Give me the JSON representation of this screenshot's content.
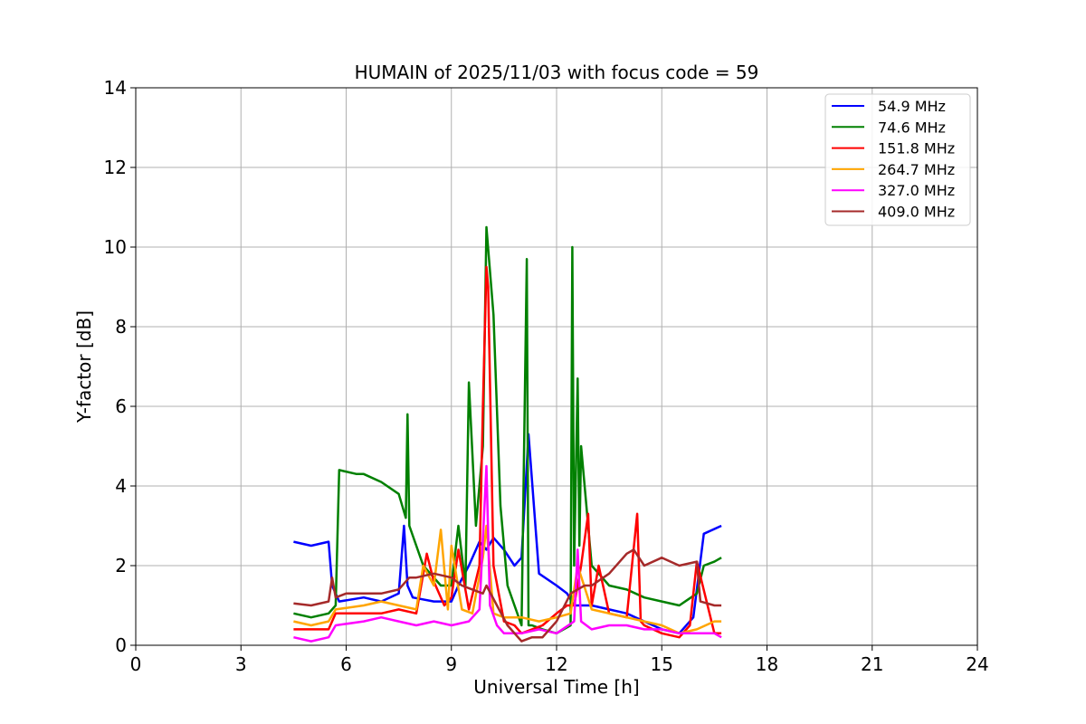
{
  "chart_data": {
    "type": "line",
    "title": "HUMAIN of 2025/11/03 with focus code = 59",
    "xlabel": "Universal Time [h]",
    "ylabel": "Y-factor [dB]",
    "xlim": [
      0,
      24
    ],
    "ylim": [
      0,
      14
    ],
    "xticks": [
      "0",
      "3",
      "6",
      "9",
      "12",
      "15",
      "18",
      "21",
      "24"
    ],
    "yticks": [
      "0",
      "2",
      "4",
      "6",
      "8",
      "10",
      "12",
      "14"
    ],
    "grid": true,
    "legend_position": "top-right",
    "series": [
      {
        "name": " 54.9 MHz",
        "color": "#0000ff",
        "x": [
          4.5,
          5.0,
          5.5,
          5.6,
          5.8,
          6.5,
          7.0,
          7.5,
          7.65,
          7.75,
          7.9,
          8.5,
          9.0,
          9.2,
          9.5,
          9.8,
          10.0,
          10.2,
          10.5,
          10.8,
          11.0,
          11.2,
          11.5,
          12.0,
          12.3,
          12.5,
          13.0,
          13.5,
          14.0,
          14.5,
          15.0,
          15.5,
          15.9,
          16.2,
          16.7
        ],
        "y": [
          2.6,
          2.5,
          2.6,
          1.5,
          1.1,
          1.2,
          1.1,
          1.3,
          3.0,
          1.5,
          1.2,
          1.1,
          1.1,
          1.5,
          2.0,
          2.6,
          2.4,
          2.7,
          2.4,
          2.0,
          2.2,
          5.3,
          1.8,
          1.5,
          1.3,
          1.0,
          1.0,
          0.9,
          0.8,
          0.6,
          0.4,
          0.3,
          0.7,
          2.8,
          3.0
        ]
      },
      {
        "name": " 74.6 MHz",
        "color": "#008000",
        "x": [
          4.5,
          5.0,
          5.5,
          5.7,
          5.8,
          6.3,
          6.5,
          7.0,
          7.5,
          7.7,
          7.75,
          7.8,
          8.2,
          8.7,
          9.0,
          9.2,
          9.4,
          9.5,
          9.7,
          9.9,
          10.0,
          10.2,
          10.4,
          10.6,
          10.8,
          11.0,
          11.15,
          11.2,
          11.3,
          11.6,
          12.0,
          12.4,
          12.45,
          12.5,
          12.6,
          12.65,
          12.7,
          13.0,
          13.5,
          14.0,
          14.5,
          15.0,
          15.5,
          16.0,
          16.2,
          16.5,
          16.7
        ],
        "y": [
          0.8,
          0.7,
          0.8,
          1.0,
          4.4,
          4.3,
          4.3,
          4.1,
          3.8,
          3.2,
          5.8,
          3.0,
          2.0,
          1.5,
          1.5,
          3.0,
          1.5,
          6.6,
          3.0,
          5.0,
          10.5,
          8.3,
          3.5,
          1.5,
          1.0,
          0.5,
          9.7,
          0.5,
          0.5,
          0.4,
          0.3,
          0.5,
          10.0,
          2.0,
          6.7,
          2.5,
          5.0,
          2.0,
          1.5,
          1.4,
          1.2,
          1.1,
          1.0,
          1.3,
          2.0,
          2.1,
          2.2
        ]
      },
      {
        "name": " 151.8 MHz",
        "color": "#ff0000",
        "x": [
          4.5,
          5.0,
          5.5,
          5.7,
          6.5,
          7.0,
          7.5,
          8.0,
          8.3,
          8.5,
          8.8,
          9.0,
          9.2,
          9.5,
          9.8,
          9.9,
          10.0,
          10.05,
          10.2,
          10.5,
          10.8,
          11.0,
          11.3,
          11.6,
          12.0,
          12.3,
          12.5,
          12.7,
          12.9,
          13.0,
          13.2,
          13.5,
          14.0,
          14.3,
          14.4,
          14.5,
          15.0,
          15.5,
          15.8,
          16.0,
          16.5,
          16.7
        ],
        "y": [
          0.4,
          0.4,
          0.4,
          0.8,
          0.8,
          0.8,
          0.9,
          0.8,
          2.3,
          1.6,
          1.0,
          1.2,
          2.4,
          0.9,
          2.0,
          6.0,
          9.5,
          9.0,
          2.0,
          0.6,
          0.5,
          0.3,
          0.4,
          0.5,
          0.8,
          1.0,
          1.0,
          2.0,
          3.3,
          1.0,
          2.0,
          0.8,
          0.7,
          3.3,
          0.6,
          0.5,
          0.3,
          0.2,
          0.5,
          2.1,
          0.3,
          0.3
        ]
      },
      {
        "name": " 264.7 MHz",
        "color": "#ffa500",
        "x": [
          4.5,
          5.0,
          5.5,
          5.7,
          6.5,
          7.0,
          7.5,
          8.0,
          8.2,
          8.5,
          8.7,
          8.9,
          9.0,
          9.3,
          9.6,
          9.9,
          10.0,
          10.2,
          10.5,
          11.0,
          11.5,
          12.0,
          12.4,
          12.6,
          13.0,
          13.5,
          14.0,
          14.5,
          15.0,
          15.5,
          16.0,
          16.5,
          16.7
        ],
        "y": [
          0.6,
          0.5,
          0.6,
          0.9,
          1.0,
          1.1,
          1.0,
          0.9,
          2.0,
          1.5,
          2.9,
          0.9,
          2.5,
          0.9,
          0.8,
          2.2,
          3.0,
          0.8,
          0.7,
          0.7,
          0.6,
          0.7,
          0.8,
          2.0,
          0.9,
          0.8,
          0.7,
          0.6,
          0.5,
          0.3,
          0.4,
          0.6,
          0.6
        ]
      },
      {
        "name": " 327.0 MHz",
        "color": "#ff00ff",
        "x": [
          4.5,
          5.0,
          5.5,
          5.7,
          6.5,
          7.0,
          7.5,
          8.0,
          8.5,
          9.0,
          9.5,
          9.8,
          10.0,
          10.1,
          10.3,
          10.5,
          11.0,
          11.5,
          12.0,
          12.5,
          12.6,
          12.7,
          13.0,
          13.5,
          14.0,
          14.5,
          15.0,
          15.5,
          16.0,
          16.5,
          16.7
        ],
        "y": [
          0.2,
          0.1,
          0.2,
          0.5,
          0.6,
          0.7,
          0.6,
          0.5,
          0.6,
          0.5,
          0.6,
          0.9,
          4.5,
          1.0,
          0.5,
          0.3,
          0.3,
          0.4,
          0.3,
          0.6,
          2.4,
          0.6,
          0.4,
          0.5,
          0.5,
          0.4,
          0.4,
          0.3,
          0.3,
          0.3,
          0.2
        ]
      },
      {
        "name": " 409.0 MHz",
        "color": "#a52a2a",
        "x": [
          4.5,
          5.0,
          5.5,
          5.6,
          5.7,
          6.0,
          6.5,
          7.0,
          7.5,
          7.8,
          8.0,
          8.5,
          9.0,
          9.3,
          9.6,
          9.9,
          10.0,
          10.3,
          10.6,
          11.0,
          11.3,
          11.6,
          12.0,
          12.4,
          12.8,
          13.0,
          13.5,
          14.0,
          14.2,
          14.5,
          15.0,
          15.5,
          16.0,
          16.1,
          16.5,
          16.7
        ],
        "y": [
          1.05,
          1.0,
          1.1,
          1.7,
          1.2,
          1.3,
          1.3,
          1.3,
          1.4,
          1.7,
          1.7,
          1.8,
          1.7,
          1.5,
          1.4,
          1.3,
          1.5,
          1.0,
          0.5,
          0.1,
          0.2,
          0.2,
          0.6,
          1.3,
          1.5,
          1.5,
          1.8,
          2.3,
          2.4,
          2.0,
          2.2,
          2.0,
          2.1,
          1.1,
          1.0,
          1.0
        ]
      }
    ]
  }
}
